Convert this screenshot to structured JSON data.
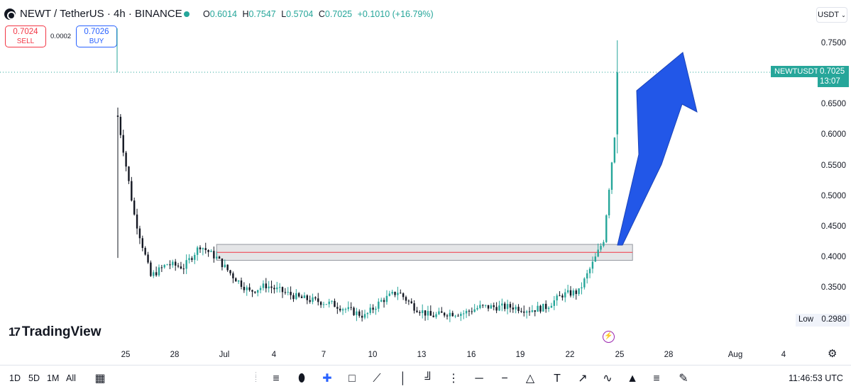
{
  "header": {
    "symbol_title": "NEWT / TetherUS · 4h · BINANCE",
    "ohlc": {
      "o_label": "O",
      "o_value": "0.6014",
      "h_label": "H",
      "h_value": "0.7547",
      "l_label": "L",
      "l_value": "0.5704",
      "c_label": "C",
      "c_value": "0.7025",
      "change": "+0.1010 (+16.79%)"
    },
    "currency": "USDT"
  },
  "trade": {
    "sell_price": "0.7024",
    "sell_label": "SELL",
    "spread": "0.0002",
    "buy_price": "0.7026",
    "buy_label": "BUY"
  },
  "price_axis": {
    "labels": [
      "0.7500",
      "0.6500",
      "0.6000",
      "0.5500",
      "0.5000",
      "0.4500",
      "0.4000",
      "0.3500"
    ],
    "symbol_tag": "NEWTUSDT",
    "last_price": "0.7025",
    "countdown": "13:07",
    "low_label": "Low",
    "low_value": "0.2980"
  },
  "time_axis": [
    "25",
    "28",
    "Jul",
    "4",
    "7",
    "10",
    "13",
    "16",
    "19",
    "22",
    "25",
    "28",
    "Aug",
    "4"
  ],
  "logo": {
    "text": "TradingView",
    "mark": "17"
  },
  "bottom_bar": {
    "ranges": [
      "1D",
      "5D",
      "1M",
      "All"
    ],
    "clock": "11:46:53 UTC"
  },
  "colors": {
    "up": "#26a69a",
    "down": "#131722",
    "arrow": "#2257e8",
    "box_border": "#9598a1",
    "box_line": "#f23645"
  },
  "chart_data": {
    "type": "candlestick",
    "x_start": "Jun 24",
    "x_end": "Jul 24",
    "interval": "4h",
    "ohlc_last": {
      "open": 0.6014,
      "high": 0.7547,
      "low": 0.5704,
      "close": 0.7025
    },
    "low": 0.298,
    "ylim": [
      0.285,
      0.78
    ],
    "anchor_closes": [
      [
        "Jun 24",
        0.63
      ],
      [
        "Jun 25",
        0.47
      ],
      [
        "Jun 26",
        0.37
      ],
      [
        "Jun 27",
        0.39
      ],
      [
        "Jun 28",
        0.385
      ],
      [
        "Jun 29",
        0.42
      ],
      [
        "Jun 30",
        0.4
      ],
      [
        "Jul 1",
        0.37
      ],
      [
        "Jul 2",
        0.345
      ],
      [
        "Jul 3",
        0.355
      ],
      [
        "Jul 5",
        0.335
      ],
      [
        "Jul 7",
        0.325
      ],
      [
        "Jul 9",
        0.305
      ],
      [
        "Jul 10",
        0.33
      ],
      [
        "Jul 11",
        0.345
      ],
      [
        "Jul 12",
        0.32
      ],
      [
        "Jul 13",
        0.305
      ],
      [
        "Jul 14",
        0.31
      ],
      [
        "Jul 15",
        0.31
      ],
      [
        "Jul 16",
        0.32
      ],
      [
        "Jul 18",
        0.32
      ],
      [
        "Jul 19",
        0.315
      ],
      [
        "Jul 20",
        0.32
      ],
      [
        "Jul 21",
        0.34
      ],
      [
        "Jul 22",
        0.345
      ],
      [
        "Jul 23",
        0.4
      ],
      [
        "Jul 23 12h",
        0.43
      ],
      [
        "Jul 24 4h",
        0.6
      ],
      [
        "Jul 24 8h",
        0.7025
      ]
    ],
    "zone": {
      "from": "Jun 30",
      "to": "Jul 25",
      "top": 0.422,
      "bottom": 0.396,
      "mid": 0.409
    }
  }
}
